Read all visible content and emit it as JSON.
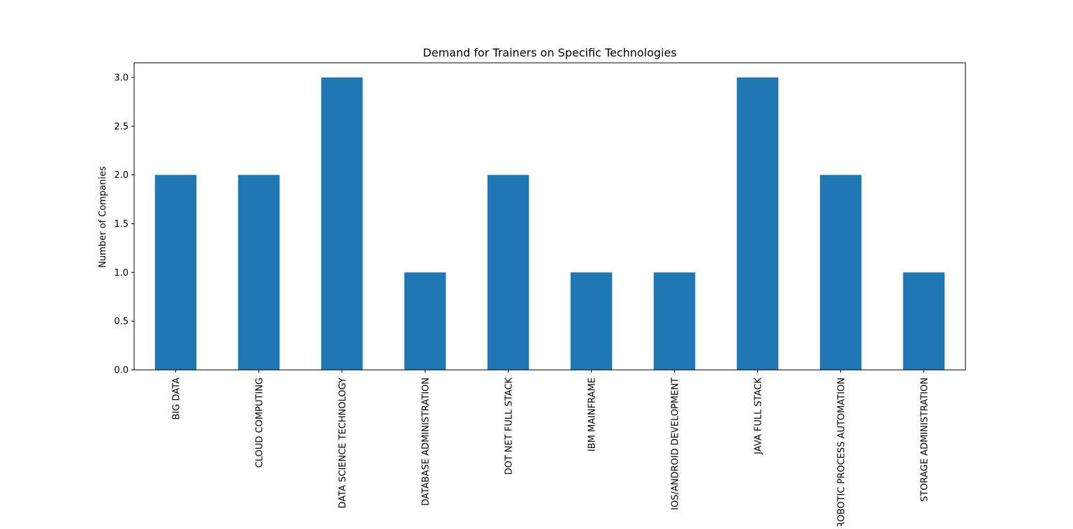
{
  "chart_data": {
    "type": "bar",
    "title": "Demand for Trainers on Specific Technologies",
    "xlabel": "",
    "ylabel": "Number of Companies",
    "categories": [
      "BIG DATA",
      "CLOUD COMPUTING",
      "DATA SCIENCE TECHNOLOGY",
      "DATABASE ADMINISTRATION",
      "DOT NET FULL STACK",
      "IBM MAINFRAME",
      "IOS/ANDROID DEVELOPMENT",
      "JAVA FULL STACK",
      "ROBOTIC PROCESS AUTOMATION",
      "STORAGE ADMINISTRATION"
    ],
    "values": [
      2,
      2,
      3,
      1,
      2,
      1,
      1,
      3,
      2,
      1
    ],
    "ylim": [
      0,
      3.15
    ],
    "yticks": [
      "0.0",
      "0.5",
      "1.0",
      "1.5",
      "2.0",
      "2.5",
      "3.0"
    ],
    "grid": false,
    "legend": "none",
    "bar_color": "#1f77b4"
  }
}
